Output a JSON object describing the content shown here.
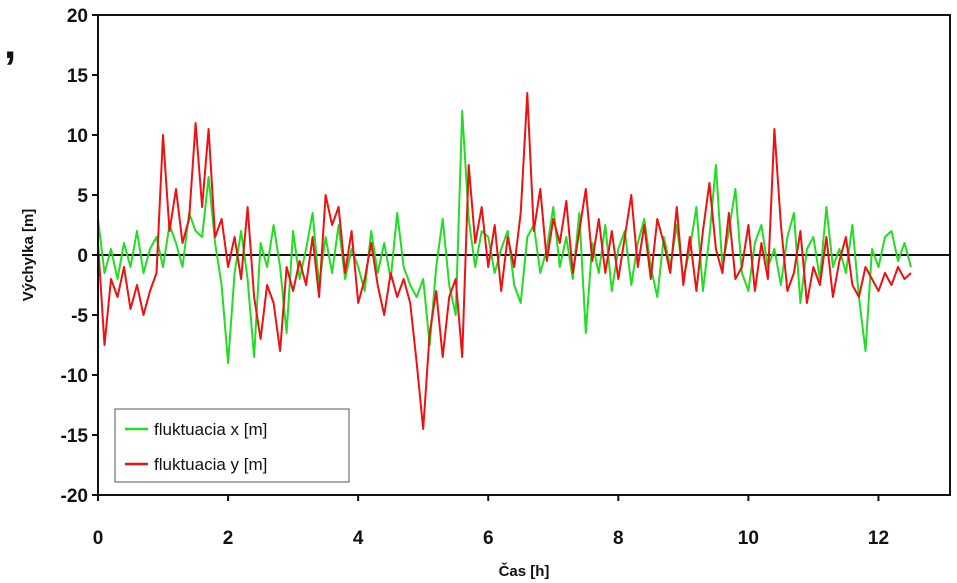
{
  "corner_mark": ",",
  "chart_data": {
    "type": "line",
    "xlabel": "Čas [h]",
    "ylabel": "Výchylka [m]",
    "xlim": [
      0,
      13.1
    ],
    "ylim": [
      -20,
      20
    ],
    "xticks": [
      0,
      2,
      4,
      6,
      8,
      10,
      12
    ],
    "yticks": [
      20,
      15,
      10,
      5,
      0,
      -5,
      -10,
      -15,
      -20
    ],
    "grid": false,
    "zero_line": true,
    "legend_position": "bottom-left",
    "series": [
      {
        "name": "fluktuacia x [m]",
        "color": "#22dd22",
        "x": [
          0.0,
          0.1,
          0.2,
          0.3,
          0.4,
          0.5,
          0.6,
          0.7,
          0.8,
          0.9,
          1.0,
          1.1,
          1.2,
          1.3,
          1.4,
          1.5,
          1.6,
          1.7,
          1.8,
          1.9,
          2.0,
          2.1,
          2.2,
          2.3,
          2.4,
          2.5,
          2.6,
          2.7,
          2.8,
          2.9,
          3.0,
          3.1,
          3.2,
          3.3,
          3.4,
          3.5,
          3.6,
          3.7,
          3.8,
          3.9,
          4.0,
          4.1,
          4.2,
          4.3,
          4.4,
          4.5,
          4.6,
          4.7,
          4.8,
          4.9,
          5.0,
          5.1,
          5.2,
          5.3,
          5.4,
          5.5,
          5.6,
          5.7,
          5.8,
          5.9,
          6.0,
          6.1,
          6.2,
          6.3,
          6.4,
          6.5,
          6.6,
          6.7,
          6.8,
          6.9,
          7.0,
          7.1,
          7.2,
          7.3,
          7.4,
          7.5,
          7.6,
          7.7,
          7.8,
          7.9,
          8.0,
          8.1,
          8.2,
          8.3,
          8.4,
          8.5,
          8.6,
          8.7,
          8.8,
          8.9,
          9.0,
          9.1,
          9.2,
          9.3,
          9.4,
          9.5,
          9.6,
          9.7,
          9.8,
          9.9,
          10.0,
          10.1,
          10.2,
          10.3,
          10.4,
          10.5,
          10.6,
          10.7,
          10.8,
          10.9,
          11.0,
          11.1,
          11.2,
          11.3,
          11.4,
          11.5,
          11.6,
          11.7,
          11.8,
          11.9,
          12.0,
          12.1,
          12.2,
          12.3,
          12.4,
          12.5
        ],
        "values": [
          3.0,
          -1.5,
          0.5,
          -2.0,
          1.0,
          -1.0,
          2.0,
          -1.5,
          0.5,
          1.5,
          -1.0,
          2.5,
          1.0,
          -1.0,
          3.5,
          2.0,
          1.5,
          6.5,
          1.0,
          -2.5,
          -9.0,
          -1.5,
          2.0,
          -2.0,
          -8.5,
          1.0,
          -1.0,
          2.5,
          -1.0,
          -6.5,
          2.0,
          -2.0,
          0.5,
          3.5,
          -2.5,
          1.5,
          -1.5,
          2.5,
          -2.0,
          0.5,
          -1.0,
          -3.0,
          2.0,
          -1.5,
          1.0,
          -2.0,
          3.5,
          -1.0,
          -2.5,
          -3.5,
          -2.0,
          -7.5,
          -1.0,
          3.0,
          -2.5,
          -5.0,
          12.0,
          3.0,
          -1.0,
          2.0,
          1.5,
          -1.5,
          0.5,
          2.0,
          -2.5,
          -4.0,
          1.5,
          2.5,
          -1.5,
          0.5,
          4.0,
          -1.0,
          1.5,
          -2.0,
          3.5,
          -6.5,
          1.0,
          -1.5,
          2.5,
          -3.0,
          0.5,
          2.0,
          -2.5,
          1.0,
          3.0,
          -1.0,
          -3.5,
          1.5,
          -1.0,
          2.5,
          -2.0,
          0.5,
          4.0,
          -3.0,
          1.5,
          7.5,
          -1.0,
          2.0,
          5.5,
          -1.5,
          -3.0,
          1.0,
          2.5,
          -1.0,
          0.5,
          -2.5,
          1.5,
          3.5,
          -4.0,
          0.5,
          1.5,
          -2.0,
          4.0,
          -1.0,
          0.5,
          -1.5,
          2.5,
          -3.5,
          -8.0,
          0.5,
          -1.0,
          1.5,
          2.0,
          -0.5,
          1.0,
          -1.0
        ]
      },
      {
        "name": "fluktuacia y [m]",
        "color": "#ee1111",
        "x": [
          0.0,
          0.1,
          0.2,
          0.3,
          0.4,
          0.5,
          0.6,
          0.7,
          0.8,
          0.9,
          1.0,
          1.1,
          1.2,
          1.3,
          1.4,
          1.5,
          1.6,
          1.7,
          1.8,
          1.9,
          2.0,
          2.1,
          2.2,
          2.3,
          2.4,
          2.5,
          2.6,
          2.7,
          2.8,
          2.9,
          3.0,
          3.1,
          3.2,
          3.3,
          3.4,
          3.5,
          3.6,
          3.7,
          3.8,
          3.9,
          4.0,
          4.1,
          4.2,
          4.3,
          4.4,
          4.5,
          4.6,
          4.7,
          4.8,
          4.9,
          5.0,
          5.1,
          5.2,
          5.3,
          5.4,
          5.5,
          5.6,
          5.7,
          5.8,
          5.9,
          6.0,
          6.1,
          6.2,
          6.3,
          6.4,
          6.5,
          6.6,
          6.7,
          6.8,
          6.9,
          7.0,
          7.1,
          7.2,
          7.3,
          7.4,
          7.5,
          7.6,
          7.7,
          7.8,
          7.9,
          8.0,
          8.1,
          8.2,
          8.3,
          8.4,
          8.5,
          8.6,
          8.7,
          8.8,
          8.9,
          9.0,
          9.1,
          9.2,
          9.3,
          9.4,
          9.5,
          9.6,
          9.7,
          9.8,
          9.9,
          10.0,
          10.1,
          10.2,
          10.3,
          10.4,
          10.5,
          10.6,
          10.7,
          10.8,
          10.9,
          11.0,
          11.1,
          11.2,
          11.3,
          11.4,
          11.5,
          11.6,
          11.7,
          11.8,
          11.9,
          12.0,
          12.1,
          12.2,
          12.3,
          12.4,
          12.5
        ],
        "values": [
          1.0,
          -7.5,
          -2.0,
          -3.5,
          -1.0,
          -4.5,
          -2.5,
          -5.0,
          -3.0,
          -1.5,
          10.0,
          2.0,
          5.5,
          1.0,
          3.0,
          11.0,
          4.0,
          10.5,
          1.5,
          3.0,
          -1.0,
          1.5,
          -2.0,
          4.0,
          -3.5,
          -7.0,
          -2.5,
          -4.0,
          -8.0,
          -1.0,
          -3.0,
          -0.5,
          -2.5,
          1.5,
          -3.5,
          5.0,
          2.5,
          4.0,
          -1.5,
          2.0,
          -4.0,
          -2.0,
          1.0,
          -2.5,
          -5.0,
          -1.5,
          -3.5,
          -2.0,
          -4.0,
          -9.0,
          -14.5,
          -6.5,
          -3.0,
          -8.5,
          -3.5,
          -2.0,
          -8.5,
          7.5,
          1.0,
          4.0,
          -1.0,
          2.5,
          -3.0,
          1.5,
          -1.0,
          3.5,
          13.5,
          2.0,
          5.5,
          -0.5,
          3.0,
          1.0,
          4.5,
          -1.5,
          2.0,
          5.5,
          -0.5,
          3.0,
          -1.5,
          2.0,
          -2.0,
          1.5,
          5.0,
          -1.0,
          2.5,
          -2.0,
          3.0,
          1.0,
          -1.5,
          4.0,
          -2.5,
          1.5,
          -3.0,
          2.0,
          6.0,
          0.5,
          -1.5,
          3.5,
          -2.0,
          -1.0,
          2.5,
          -3.0,
          1.0,
          -2.0,
          10.5,
          2.5,
          -3.0,
          -1.5,
          2.0,
          -4.0,
          -1.0,
          -2.5,
          1.5,
          -3.5,
          -0.5,
          1.5,
          -2.5,
          -3.5,
          -1.0,
          -2.0,
          -3.0,
          -1.5,
          -2.5,
          -1.0,
          -2.0,
          -1.5
        ]
      }
    ]
  }
}
